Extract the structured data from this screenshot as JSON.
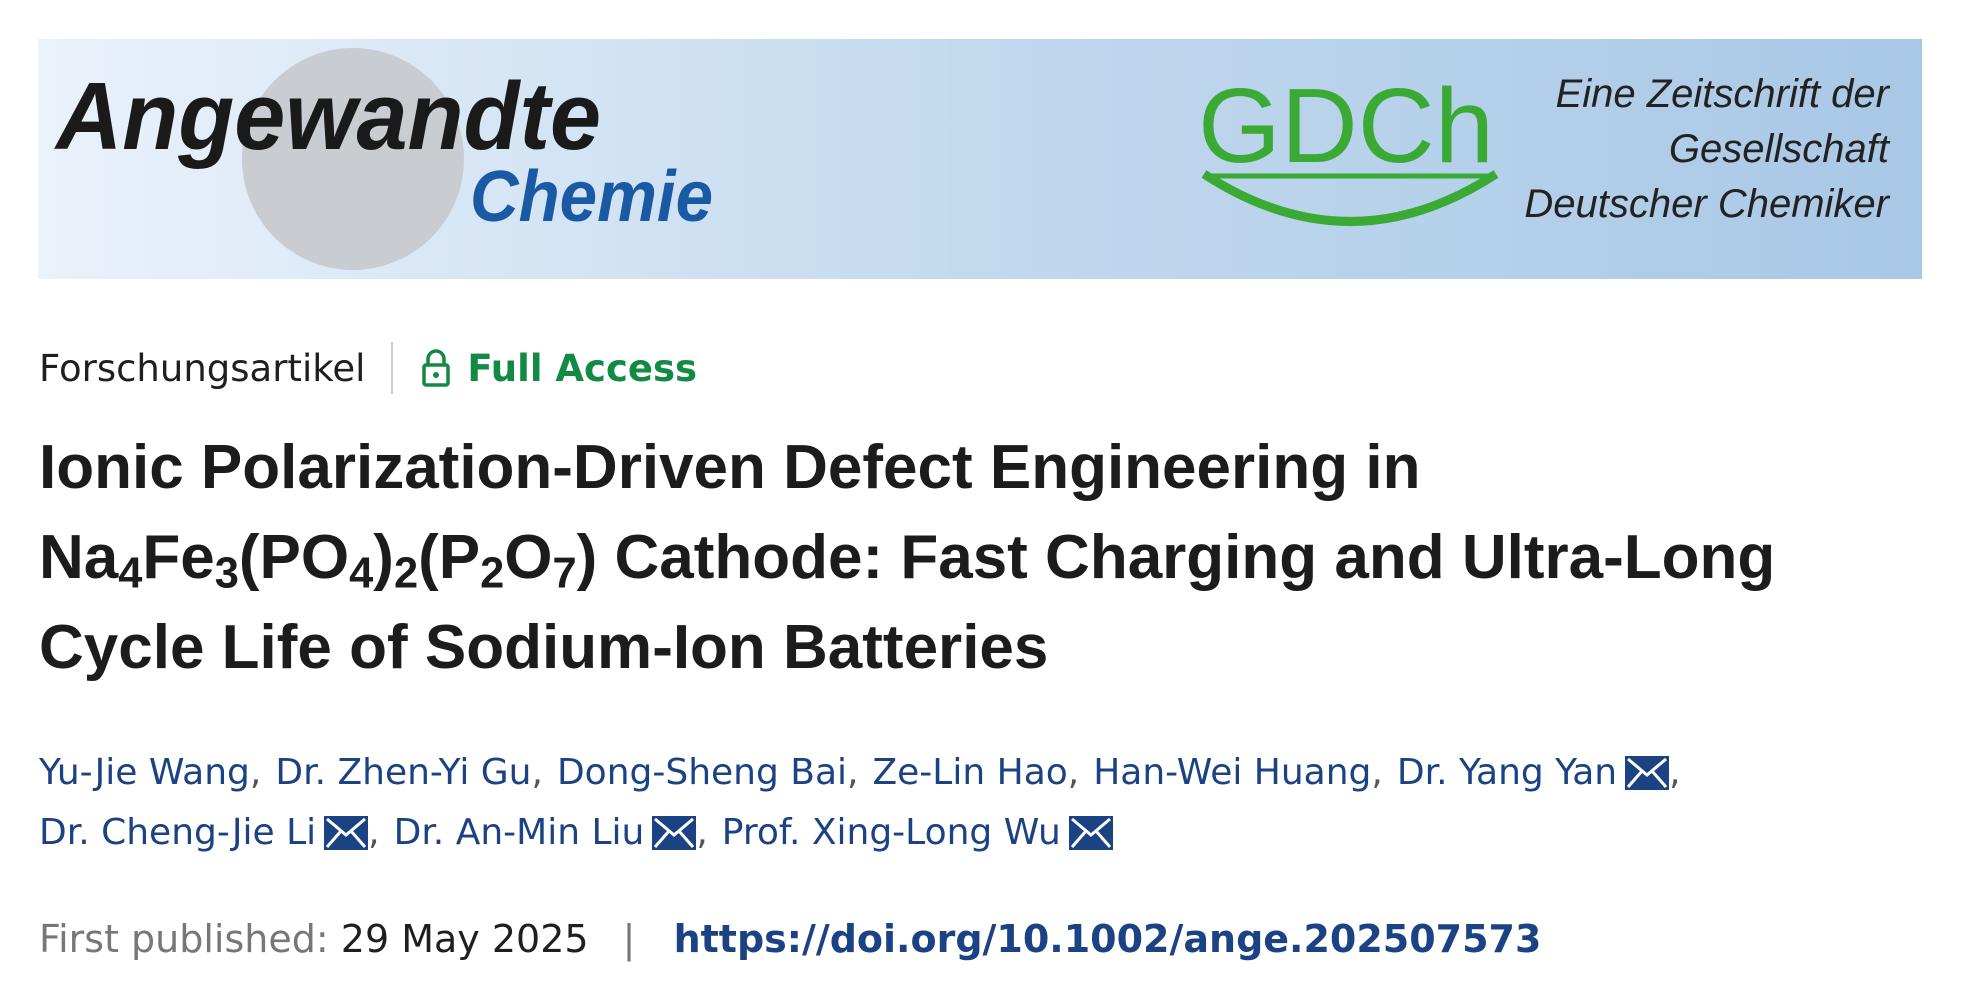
{
  "banner": {
    "journal_name": "Angewandte",
    "journal_sub": "Chemie",
    "society_logo": "GDCh",
    "society_text": [
      "Eine Zeitschrift der",
      "Gesellschaft",
      "Deutscher Chemiker"
    ]
  },
  "article_type": "Forschungsartikel",
  "access": "Full Access",
  "title_lines": [
    [
      "Ionic Polarization-Driven Defect Engineering in"
    ],
    [
      "Na",
      {
        "sub": "4"
      },
      "Fe",
      {
        "sub": "3"
      },
      "(PO",
      {
        "sub": "4"
      },
      ")",
      {
        "sub": "2"
      },
      "(P",
      {
        "sub": "2"
      },
      "O",
      {
        "sub": "7"
      },
      ") Cathode: Fast Charging and Ultra-Long"
    ],
    [
      "Cycle Life of Sodium-Ion Batteries"
    ]
  ],
  "author_separator": ",",
  "author_lines": [
    [
      {
        "name": "Yu-Jie Wang"
      },
      {
        "name": "Dr. Zhen-Yi Gu"
      },
      {
        "name": "Dong-Sheng Bai"
      },
      {
        "name": "Ze-Lin Hao"
      },
      {
        "name": "Han-Wei Huang"
      },
      {
        "name": "Dr. Yang Yan",
        "email": true
      }
    ],
    [
      {
        "name": "Dr. Cheng-Jie Li",
        "email": true
      },
      {
        "name": "Dr. An-Min Liu",
        "email": true
      },
      {
        "name": "Prof. Xing-Long Wu",
        "email": true
      }
    ]
  ],
  "published": {
    "label": "First published:",
    "date": "29 May 2025",
    "separator": "|",
    "doi": "https://doi.org/10.1002/ange.202507573"
  }
}
